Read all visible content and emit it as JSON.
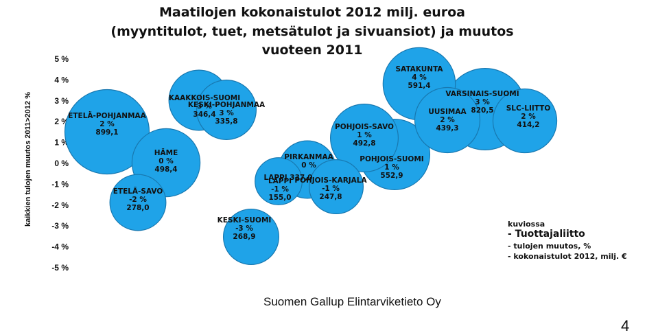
{
  "chart_data": {
    "type": "scatter",
    "title_lines": [
      "Maatilojen kokonaistulot 2012 milj. euroa",
      "(myyntitulot, tuet, metsätulot ja sivuansiot) ja muutos",
      "vuoteen 2011"
    ],
    "ylabel": "kaikkien tulojen muutos 2011>2012 %",
    "ylim": [
      -5,
      5
    ],
    "yticks": [
      "5 %",
      "4 %",
      "3 %",
      "2 %",
      "1 %",
      "0 %",
      "-1 %",
      "-2 %",
      "-3 %",
      "-4 %",
      "-5 %"
    ],
    "bubble_color": "#1fa3e8",
    "points": [
      {
        "name": "ETELÄ-POHJANMAA",
        "change": "2 %",
        "income": "899,1",
        "y": 1.7,
        "size": 899.1
      },
      {
        "name": "HÄME",
        "change": "0 %",
        "income": "498,4",
        "y": 0.0,
        "size": 498.4
      },
      {
        "name": "ETELÄ-SAVO",
        "change": "-2 %",
        "income": "278,0",
        "y": -1.9,
        "size": 278.0
      },
      {
        "name": "KAAKKOIS-SUOMI",
        "change": "3 %",
        "income": "346,4",
        "y": 2.9,
        "size": 346.4
      },
      {
        "name": "KESKI-POHJANMAA",
        "change": "3 %",
        "income": "335,8",
        "y": 2.6,
        "size": 335.8
      },
      {
        "name": "KESKI-SUOMI",
        "change": "-3 %",
        "income": "268,9",
        "y": -3.4,
        "size": 268.9
      },
      {
        "name": "PIRKANMAA",
        "change": "0 %",
        "income": "",
        "y": -0.3,
        "size": 300
      },
      {
        "name": "LAPPI",
        "change": "-1 %",
        "income": "155,0",
        "y": -0.9,
        "size": 155.0
      },
      {
        "name": "POHJOIS-KARJALA",
        "change": "-1 %",
        "income": "247,8",
        "y": -1.1,
        "size": 247.8
      },
      {
        "name": "POHJOIS-SAVO",
        "change": "1 %",
        "income": "492,8",
        "y": 1.0,
        "size": 492.8
      },
      {
        "name": "POHJOIS-SUOMI",
        "change": "1 %",
        "income": "552,9",
        "y": 0.5,
        "size": 552.9
      },
      {
        "name": "SATAKUNTA",
        "change": "4 %",
        "income": "591,4",
        "y": 3.8,
        "size": 591.4
      },
      {
        "name": "UUSIMAA",
        "change": "2 %",
        "income": "439,3",
        "y": 2.0,
        "size": 439.3
      },
      {
        "name": "VARSINAIS-SUOMI",
        "change": "3 %",
        "income": "820,5",
        "y": 2.6,
        "size": 820.5
      },
      {
        "name": "SLC-LIITTO",
        "change": "2 %",
        "income": "414,2",
        "y": 2.1,
        "size": 414.2
      }
    ],
    "overlap_text": "LAPPI 337,0",
    "legend": {
      "title": "kuviossa",
      "items": [
        "- Tuottajaliitto",
        "- tulojen muutos, %",
        "- kokonaistulot 2012, milj. €"
      ],
      "placement": "bottom-right"
    }
  },
  "footer": {
    "source": "Suomen Gallup Elintarviketieto Oy",
    "page_number": "4"
  }
}
